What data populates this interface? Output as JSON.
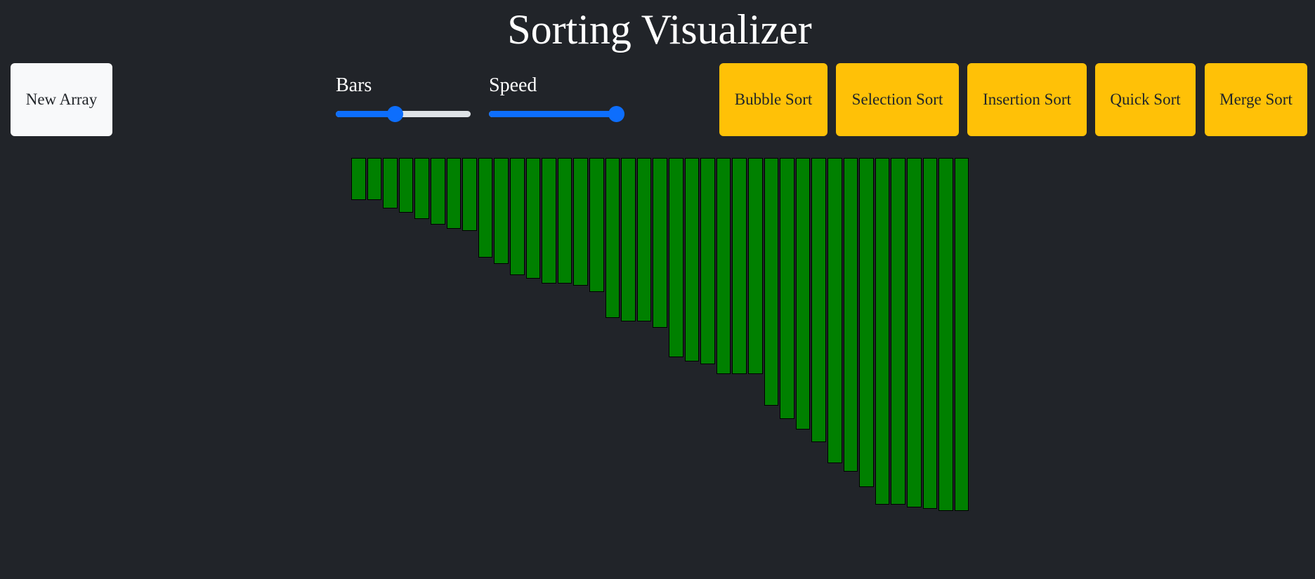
{
  "header": {
    "title": "Sorting Visualizer"
  },
  "toolbar": {
    "new_array_label": "New Array",
    "bars_label": "Bars",
    "speed_label": "Speed",
    "bars_slider_value": 0.43,
    "speed_slider_value": 1.0,
    "sort_buttons": [
      "Bubble Sort",
      "Selection Sort",
      "Insertion Sort",
      "Quick Sort",
      "Merge Sort"
    ]
  },
  "colors": {
    "background": "#212429",
    "bar_fill": "#008000",
    "bar_border": "#000000",
    "sort_button": "#ffc107",
    "new_array_button": "#f8f9fa",
    "slider_accent": "#0d6efd"
  },
  "array": {
    "values": [
      60,
      60,
      72,
      78,
      87,
      95,
      101,
      104,
      142,
      151,
      167,
      172,
      179,
      179,
      182,
      191,
      228,
      233,
      233,
      242,
      284,
      290,
      294,
      308,
      308,
      308,
      353,
      372,
      387,
      405,
      435,
      447,
      469,
      494,
      494,
      498,
      500,
      503,
      503
    ]
  }
}
